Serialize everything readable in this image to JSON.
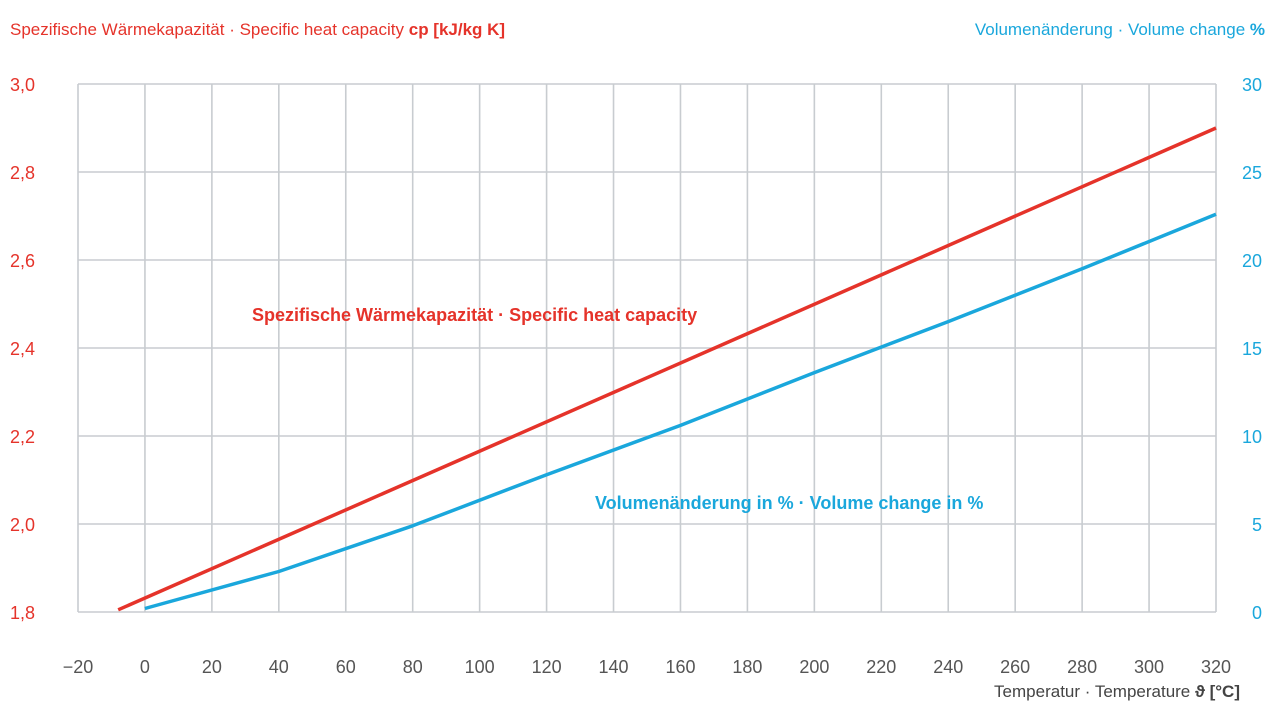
{
  "chart_data": {
    "type": "line",
    "left_axis_title": {
      "main": "Spezifische Wärmekapazität · Specific heat capacity ",
      "unit": "cp [kJ/kg K]"
    },
    "right_axis_title": {
      "main": "Volumenänderung · Volume change ",
      "unit": "%"
    },
    "x_axis_title": {
      "main": "Temperatur · Temperature ",
      "unit": "ϑ [°C]"
    },
    "xlim": [
      -20,
      320
    ],
    "ylim_left": [
      1.8,
      3.0
    ],
    "ylim_right": [
      0,
      30
    ],
    "x_ticks": [
      -20,
      0,
      20,
      40,
      60,
      80,
      100,
      120,
      140,
      160,
      180,
      200,
      220,
      240,
      260,
      280,
      300,
      320
    ],
    "x_tick_labels": [
      "−20",
      "0",
      "20",
      "40",
      "60",
      "80",
      "100",
      "120",
      "140",
      "160",
      "180",
      "200",
      "220",
      "240",
      "260",
      "280",
      "300",
      "320"
    ],
    "y_left_ticks": [
      1.8,
      2.0,
      2.2,
      2.4,
      2.6,
      2.8,
      3.0
    ],
    "y_left_tick_labels": [
      "1,8",
      "2,0",
      "2,2",
      "2,4",
      "2,6",
      "2,8",
      "3,0"
    ],
    "y_right_ticks": [
      0,
      5,
      10,
      15,
      20,
      25,
      30
    ],
    "y_right_tick_labels": [
      "0",
      "5",
      "10",
      "15",
      "20",
      "25",
      "30"
    ],
    "grid": true,
    "series": [
      {
        "name": "Spezifische Wärmekapazität · Specific heat capacity",
        "axis": "left",
        "color": "#e5332a",
        "x": [
          -8,
          320
        ],
        "y": [
          1.805,
          2.9
        ]
      },
      {
        "name": "Volumenänderung in % · Volume change in %",
        "axis": "right",
        "color": "#1aa7dc",
        "x": [
          0,
          40,
          80,
          120,
          160,
          200,
          240,
          280,
          320
        ],
        "y": [
          0.2,
          2.3,
          4.9,
          7.8,
          10.6,
          13.6,
          16.5,
          19.5,
          22.6
        ]
      }
    ]
  }
}
